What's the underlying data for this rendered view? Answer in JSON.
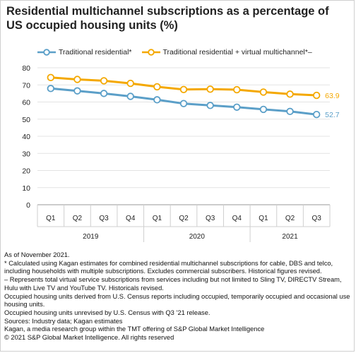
{
  "title_line1": "Residential multichannel subscriptions as a percentage of",
  "title_line2": "US occupied housing units (%)",
  "colors": {
    "traditional": "#5b9fc8",
    "combined": "#f4a800",
    "grid": "#e3e3e3",
    "axis": "#9a9a9a"
  },
  "chart_data": {
    "type": "line",
    "categories": [
      "Q1",
      "Q2",
      "Q3",
      "Q4",
      "Q1",
      "Q2",
      "Q3",
      "Q4",
      "Q1",
      "Q2",
      "Q3"
    ],
    "years": [
      {
        "label": "2019",
        "start": 0,
        "end": 3
      },
      {
        "label": "2020",
        "start": 4,
        "end": 7
      },
      {
        "label": "2021",
        "start": 8,
        "end": 10
      }
    ],
    "series": [
      {
        "name": "Traditional residential*",
        "color": "#5b9fc8",
        "values": [
          67.9,
          66.5,
          65.0,
          63.3,
          61.3,
          59.1,
          58.0,
          57.0,
          55.7,
          54.5,
          52.7
        ],
        "end_label": "52.7"
      },
      {
        "name": "Traditional residential + virtual multichannel*–",
        "color": "#f4a800",
        "values": [
          74.3,
          73.2,
          72.4,
          70.9,
          68.9,
          67.3,
          67.5,
          67.2,
          65.8,
          64.6,
          63.9
        ],
        "end_label": "63.9"
      }
    ],
    "ylim": [
      0,
      80
    ],
    "yticks": [
      0,
      10,
      20,
      30,
      40,
      50,
      60,
      70,
      80
    ],
    "grid": true,
    "legend_position": "top"
  },
  "notes": [
    "As of November 2021.",
    "* Calculated using Kagan estimates for combined residential multichannel subscriptions for cable, DBS and telco, including households with multiple subscriptions. Excludes commercial subscribers. Historical figures revised.",
    "– Represents total virtual service subscriptions from services including but not limited to Sling TV, DIRECTV Stream, Hulu with Live TV and YouTube TV. Historicals revised.",
    "Occupied housing units derived from U.S. Census reports including occupied, temporarily occupied and occasional use housing units.",
    "Occupied housing units unrevised by U.S. Census with Q3 ’21 release.",
    "Sources: Industry data; Kagan estimates",
    "Kagan, a media research group within the TMT offering of S&P Global Market Intelligence",
    "© 2021 S&P Global Market Intelligence. All rights reserved"
  ]
}
